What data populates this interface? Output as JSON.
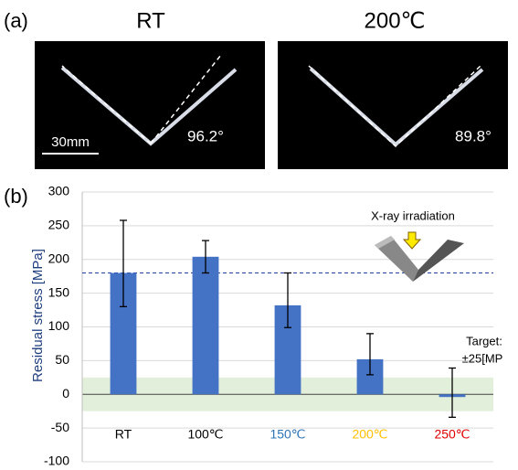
{
  "panel_a": {
    "label": "(a)",
    "images": [
      {
        "title": "RT",
        "angle": "96.2°",
        "scale_bar": "30mm"
      },
      {
        "title": "200℃",
        "angle": "89.8°"
      }
    ]
  },
  "chart_data": {
    "type": "bar",
    "panel_label": "(b)",
    "y_label": "Residual stress [MPa]",
    "categories": [
      "RT",
      "100℃",
      "150℃",
      "200℃",
      "250℃"
    ],
    "category_colors": [
      "#000000",
      "#000000",
      "#2e75b6",
      "#ffc000",
      "#e00000"
    ],
    "values": [
      180,
      204,
      132,
      52,
      -4
    ],
    "lower": [
      130,
      180,
      99,
      29,
      -34
    ],
    "upper": [
      258,
      228,
      180,
      90,
      39
    ],
    "color": "#4472c4",
    "ylim": [
      -100,
      300
    ],
    "yticks": [
      -100,
      -50,
      0,
      50,
      100,
      150,
      200,
      250,
      300
    ],
    "grid": true,
    "reference_line": 180,
    "target_band": [
      -25,
      25
    ],
    "annotations": [
      "X-ray irradiation",
      "Target:",
      "±25[MP"
    ]
  }
}
